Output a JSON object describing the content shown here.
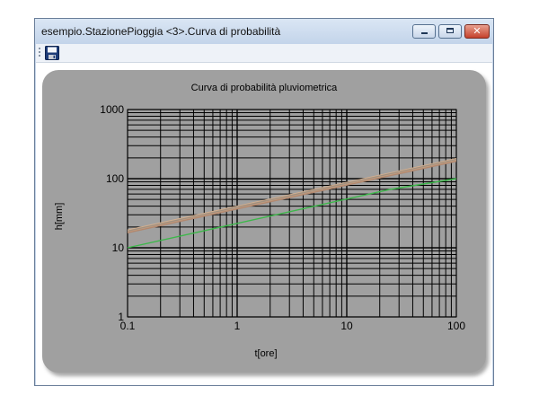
{
  "window": {
    "title": "esempio.StazionePioggia <3>.Curva di probabilità"
  },
  "toolbar": {
    "save_icon": "floppy-disk-icon"
  },
  "chart_data": {
    "type": "line",
    "title": "Curva di probabilità pluviometrica",
    "xlabel": "t[ore]",
    "ylabel": "h[mm]",
    "x_scale": "log",
    "y_scale": "log",
    "xlim": [
      0.1,
      100
    ],
    "ylim": [
      1,
      1000
    ],
    "x_ticks": [
      "0.1",
      "1",
      "10",
      "100"
    ],
    "y_ticks": [
      "1",
      "10",
      "100",
      "1000"
    ],
    "grid": true,
    "background": "#a0a0a0",
    "series": [
      {
        "color": "#c8a080",
        "x": [
          0.1,
          100
        ],
        "y": [
          17,
          185
        ]
      },
      {
        "color": "#d4b090",
        "x": [
          0.1,
          100
        ],
        "y": [
          18,
          195
        ]
      },
      {
        "color": "#b08870",
        "x": [
          0.1,
          100
        ],
        "y": [
          16.5,
          178
        ]
      },
      {
        "color": "#a09080",
        "x": [
          0.1,
          100
        ],
        "y": [
          17.5,
          190
        ]
      },
      {
        "color": "#3cb84a",
        "x": [
          0.1,
          25
        ],
        "y": [
          10,
          70
        ]
      },
      {
        "color": "#3cb84a",
        "x": [
          25,
          100
        ],
        "y": [
          70,
          100
        ]
      }
    ]
  }
}
